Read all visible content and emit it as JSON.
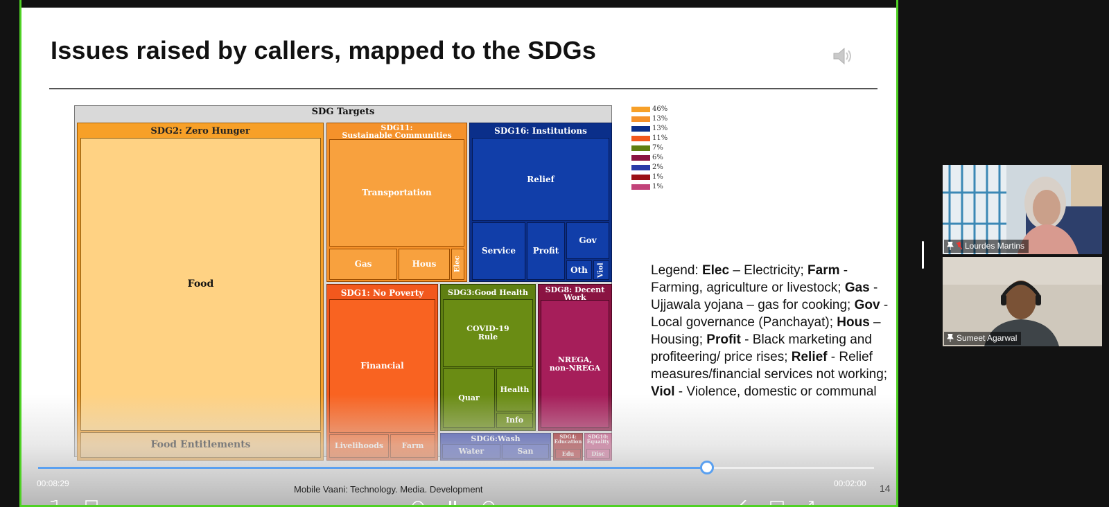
{
  "slide": {
    "title": "Issues raised by callers, mapped to the SDGs",
    "footer": "Mobile Vaani: Technology. Media. Development",
    "page_number": "14"
  },
  "treemap": {
    "root": "SDG Targets",
    "groups": {
      "sdg2": "SDG2: Zero Hunger",
      "sdg11": "SDG11:\nSustainable Communities",
      "sdg16": "SDG16: Institutions",
      "sdg1": "SDG1: No Poverty",
      "sdg3": "SDG3:Good Health",
      "sdg8": "SDG8: Decent\nWork",
      "sdg6": "SDG6:Wash",
      "sdg4": "SDG4:\nEducation",
      "sdg10": "SDG10:\nEquality"
    },
    "leaves": {
      "food": "Food",
      "food_entitlements": "Food Entitlements",
      "transportation": "Transportation",
      "gas": "Gas",
      "hous": "Hous",
      "elec": "Elec",
      "relief": "Relief",
      "service": "Service",
      "profit": "Profit",
      "gov": "Gov",
      "oth": "Oth",
      "viol": "Viol",
      "financial": "Financial",
      "livelihoods": "Livelihoods",
      "farm": "Farm",
      "covid": "COVID-19\nRule",
      "quar": "Quar",
      "health": "Health",
      "info": "Info",
      "nrega": "NREGA,\nnon-NREGA",
      "water": "Water",
      "san": "San",
      "edu": "Edu",
      "disc": "Disc"
    },
    "color_legend": [
      {
        "label": "46%",
        "color": "#f7a028"
      },
      {
        "label": "13%",
        "color": "#f5922b"
      },
      {
        "label": "13%",
        "color": "#0b2f8a"
      },
      {
        "label": "11%",
        "color": "#f2581d"
      },
      {
        "label": "7%",
        "color": "#5f7f12"
      },
      {
        "label": "6%",
        "color": "#8a1442"
      },
      {
        "label": "2%",
        "color": "#2a3ba8"
      },
      {
        "label": "1%",
        "color": "#9b0f15"
      },
      {
        "label": "1%",
        "color": "#c2437a"
      }
    ]
  },
  "legend": {
    "items": [
      {
        "term": "Legend: ",
        "plain": true
      },
      {
        "term": "Elec",
        "def": " – Electricity; "
      },
      {
        "term": "Farm",
        "def": " - Farming, agriculture or livestock; "
      },
      {
        "term": "Gas",
        "def": " - Ujjawala yojana – gas for cooking; "
      },
      {
        "term": "Gov",
        "def": " - Local governance (Panchayat); "
      },
      {
        "term": "Hous",
        "def": " –Housing; "
      },
      {
        "term": "Profit",
        "def": " - Black marketing and profiteering/ price rises; "
      },
      {
        "term": "Relief",
        "def": " - Relief measures/financial services not working; "
      },
      {
        "term": "Viol",
        "def": " - Violence, domestic or communal"
      }
    ]
  },
  "player": {
    "elapsed": "00:08:29",
    "remaining": "00:02:00",
    "progress": 0.8
  },
  "participants": [
    {
      "name": "Lourdes Martins",
      "muted": true,
      "pinned": true
    },
    {
      "name": "Sumeet Agarwal",
      "muted": false,
      "pinned": true
    }
  ]
}
